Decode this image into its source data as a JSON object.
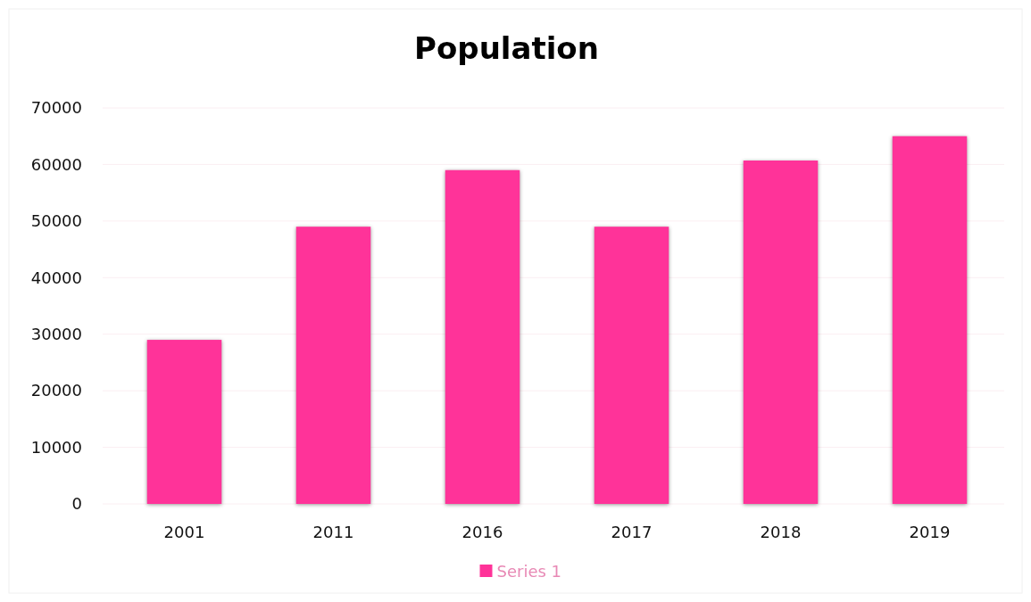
{
  "chart_data": {
    "type": "bar",
    "title": "Population",
    "categories": [
      "2001",
      "2011",
      "2016",
      "2017",
      "2018",
      "2019"
    ],
    "series": [
      {
        "name": "Series 1",
        "color": "#ff3399",
        "values": [
          29000,
          49000,
          59000,
          49000,
          60700,
          65000
        ]
      }
    ],
    "ylim": [
      0,
      70000
    ],
    "yticks": [
      0,
      10000,
      20000,
      30000,
      40000,
      50000,
      60000,
      70000
    ],
    "grid": "y",
    "legend": "bottom"
  }
}
